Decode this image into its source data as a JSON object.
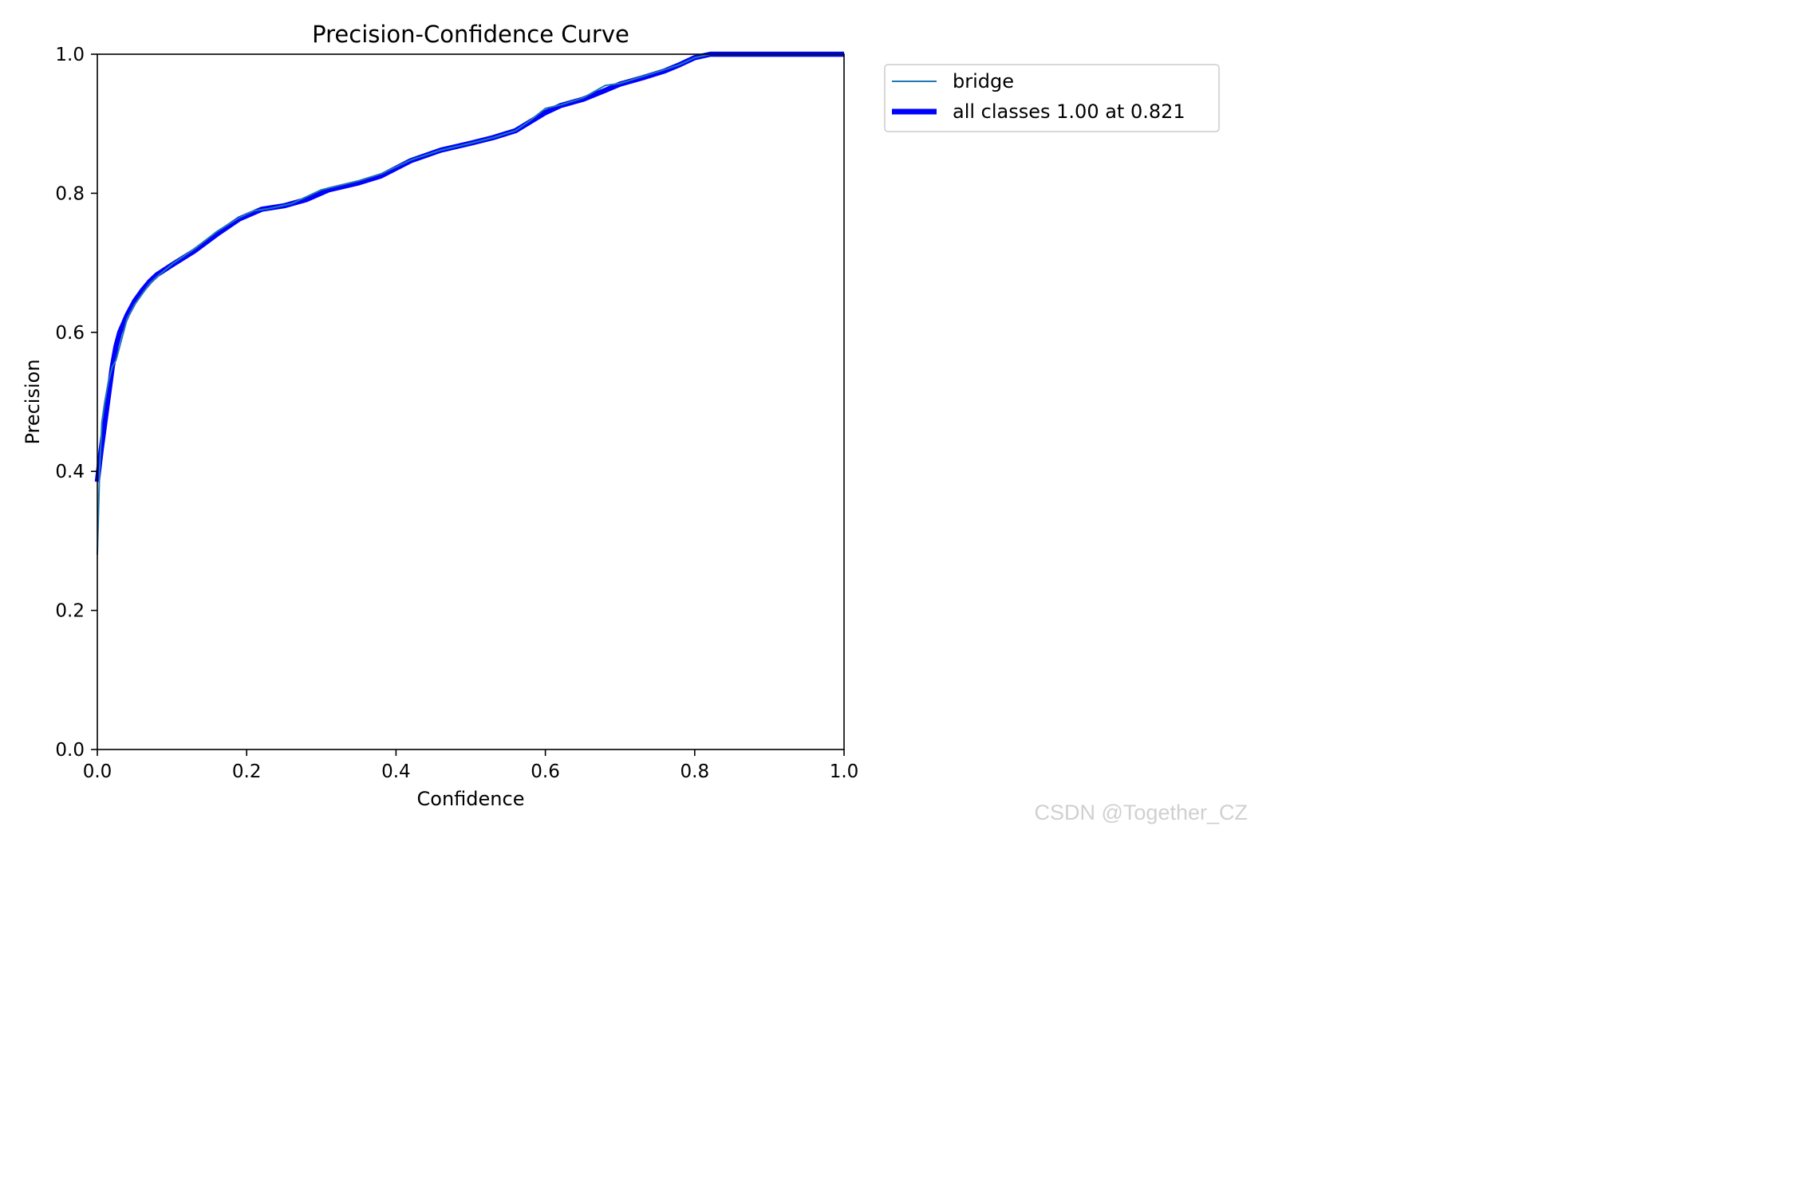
{
  "chart_data": {
    "type": "line",
    "title": "Precision-Confidence Curve",
    "xlabel": "Confidence",
    "ylabel": "Precision",
    "xlim": [
      0.0,
      1.0
    ],
    "ylim": [
      0.0,
      1.0
    ],
    "x_ticks": [
      "0.0",
      "0.2",
      "0.4",
      "0.6",
      "0.8",
      "1.0"
    ],
    "y_ticks": [
      "0.0",
      "0.2",
      "0.4",
      "0.6",
      "0.8",
      "1.0"
    ],
    "grid": false,
    "legend_position": "outside top-right",
    "series": [
      {
        "name": "bridge",
        "color": "#1f77b4",
        "style": "thin",
        "x": [
          0.0,
          0.003,
          0.006,
          0.01,
          0.015,
          0.02,
          0.025,
          0.03,
          0.04,
          0.05,
          0.06,
          0.07,
          0.08,
          0.1,
          0.13,
          0.16,
          0.19,
          0.21,
          0.23,
          0.26,
          0.3,
          0.35,
          0.38,
          0.42,
          0.46,
          0.5,
          0.53,
          0.56,
          0.58,
          0.6,
          0.62,
          0.65,
          0.68,
          0.7,
          0.73,
          0.76,
          0.78,
          0.8,
          0.821,
          0.9,
          1.0
        ],
        "y": [
          0.28,
          0.4,
          0.47,
          0.5,
          0.53,
          0.55,
          0.56,
          0.58,
          0.62,
          0.64,
          0.655,
          0.67,
          0.68,
          0.698,
          0.72,
          0.745,
          0.765,
          0.775,
          0.778,
          0.785,
          0.805,
          0.818,
          0.828,
          0.848,
          0.862,
          0.872,
          0.88,
          0.89,
          0.905,
          0.922,
          0.927,
          0.937,
          0.955,
          0.958,
          0.968,
          0.978,
          0.985,
          0.995,
          1.0,
          1.0,
          1.0
        ]
      },
      {
        "name": "all classes 1.00 at 0.821",
        "color": "#0000ff",
        "style": "thick",
        "x": [
          0.0,
          0.005,
          0.01,
          0.015,
          0.02,
          0.025,
          0.03,
          0.04,
          0.05,
          0.06,
          0.07,
          0.08,
          0.1,
          0.13,
          0.16,
          0.19,
          0.22,
          0.25,
          0.28,
          0.31,
          0.35,
          0.38,
          0.42,
          0.46,
          0.5,
          0.53,
          0.56,
          0.58,
          0.6,
          0.62,
          0.65,
          0.68,
          0.7,
          0.73,
          0.76,
          0.78,
          0.8,
          0.821,
          0.9,
          1.0
        ],
        "y": [
          0.385,
          0.43,
          0.47,
          0.51,
          0.55,
          0.58,
          0.6,
          0.625,
          0.645,
          0.66,
          0.673,
          0.683,
          0.697,
          0.717,
          0.741,
          0.763,
          0.777,
          0.782,
          0.791,
          0.805,
          0.815,
          0.825,
          0.847,
          0.862,
          0.872,
          0.88,
          0.89,
          0.903,
          0.916,
          0.926,
          0.935,
          0.948,
          0.957,
          0.966,
          0.976,
          0.985,
          0.995,
          1.0,
          1.0,
          1.0
        ]
      }
    ]
  },
  "watermark": "CSDN @Together_CZ"
}
